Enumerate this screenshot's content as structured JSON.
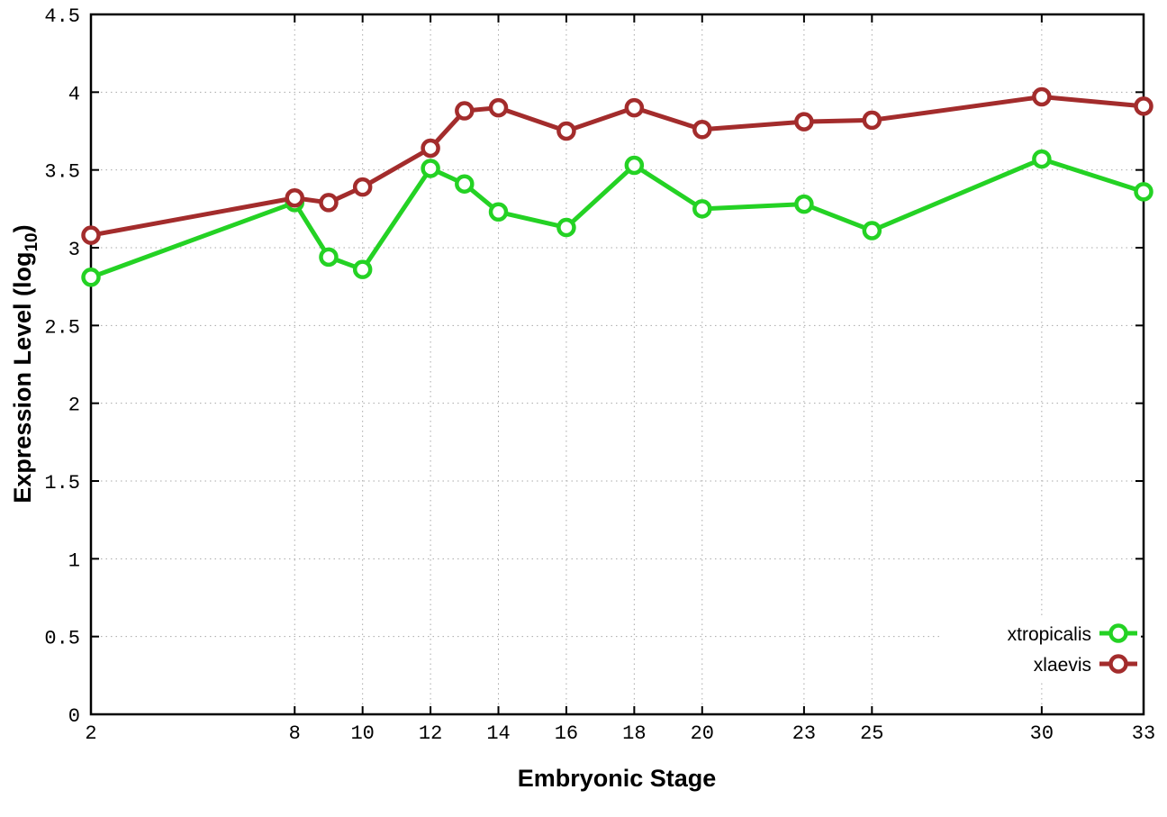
{
  "chart_data": {
    "type": "line",
    "title": "",
    "xlabel": "Embryonic Stage",
    "ylabel": "Expression Level (log10)",
    "ylabel_parts": {
      "main": "Expression Level (log",
      "sub": "10",
      "end": ")"
    },
    "x": [
      2,
      8,
      9,
      10,
      12,
      13,
      14,
      16,
      18,
      20,
      23,
      25,
      30,
      33
    ],
    "series": [
      {
        "name": "xtropicalis",
        "color": "#24d224",
        "marker": "open-circle",
        "values": [
          2.81,
          3.29,
          2.94,
          2.86,
          3.51,
          3.41,
          3.23,
          3.13,
          3.53,
          3.25,
          3.28,
          3.11,
          3.57,
          3.36
        ]
      },
      {
        "name": "xlaevis",
        "color": "#a32c2c",
        "marker": "open-circle",
        "values": [
          3.08,
          3.32,
          3.29,
          3.39,
          3.64,
          3.88,
          3.9,
          3.75,
          3.9,
          3.76,
          3.81,
          3.82,
          3.97,
          3.91
        ]
      }
    ],
    "xlim": [
      2,
      33
    ],
    "ylim": [
      0,
      4.5
    ],
    "xticks": {
      "values": [
        2,
        8,
        10,
        12,
        14,
        16,
        18,
        20,
        23,
        25,
        30,
        33
      ],
      "labels": [
        "2",
        "8",
        "10",
        "12",
        "14",
        "16",
        "18",
        "20",
        "23",
        "25",
        "30",
        "33"
      ]
    },
    "yticks": {
      "values": [
        0,
        0.5,
        1,
        1.5,
        2,
        2.5,
        3,
        3.5,
        4,
        4.5
      ],
      "labels": [
        "0",
        "0.5",
        "1",
        "1.5",
        "2",
        "2.5",
        "3",
        "3.5",
        "4",
        "4.5"
      ]
    },
    "grid": true,
    "legend": {
      "position": "inside-bottom-right",
      "entries": [
        "xtropicalis",
        "xlaevis"
      ]
    },
    "colors": {
      "axis": "#000000",
      "grid": "#a8a8a8",
      "background": "#ffffff"
    }
  }
}
